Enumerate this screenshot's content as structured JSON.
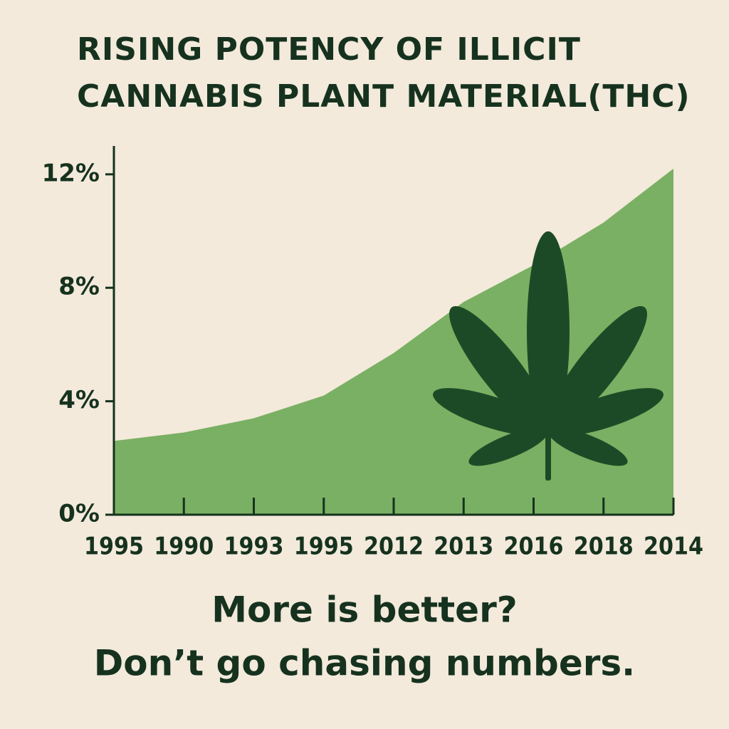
{
  "chart_data": {
    "type": "area",
    "title": [
      "RISING POTENCY OF ILLICIT",
      "CANNABIS PLANT MATERIAL(THC)"
    ],
    "categories": [
      "1995",
      "1990",
      "1993",
      "1995",
      "2012",
      "2013",
      "2016",
      "2018",
      "2014"
    ],
    "values": [
      2.6,
      2.9,
      3.4,
      4.2,
      5.7,
      7.5,
      8.8,
      10.3,
      12.2
    ],
    "color": "#7ab063",
    "ylim": [
      0,
      13
    ],
    "yticks": [
      {
        "value": 0,
        "label": "0%"
      },
      {
        "value": 4,
        "label": "4%"
      },
      {
        "value": 8,
        "label": "8%"
      },
      {
        "value": 12,
        "label": "12%"
      }
    ],
    "caption": [
      "More is better?",
      "Don’t go chasing numbers."
    ]
  }
}
